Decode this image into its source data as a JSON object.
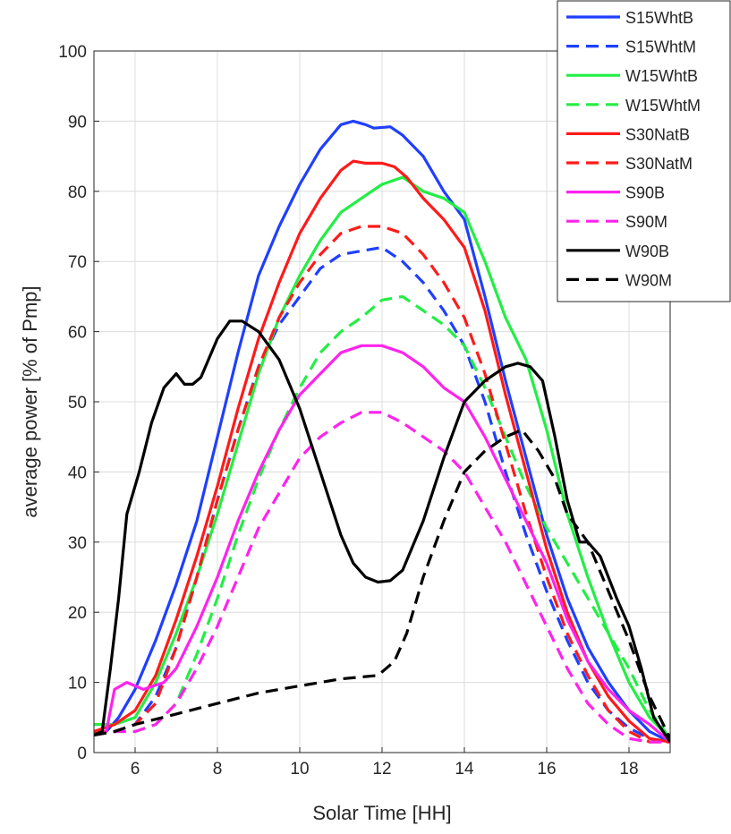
{
  "chart_data": {
    "type": "line",
    "title": "",
    "xlabel": "Solar Time [HH]",
    "ylabel": "average power [% of Pmp]",
    "xlim": [
      5,
      19
    ],
    "ylim": [
      0,
      100
    ],
    "xticks": [
      6,
      8,
      10,
      12,
      14,
      16,
      18
    ],
    "yticks": [
      0,
      10,
      20,
      30,
      40,
      50,
      60,
      70,
      80,
      90,
      100
    ],
    "grid": true,
    "legend_position": "top-right",
    "series": [
      {
        "name": "S15WhtB",
        "color": "#1f3fff",
        "dash": false,
        "points": [
          [
            5,
            2.5
          ],
          [
            5.3,
            3
          ],
          [
            5.6,
            5
          ],
          [
            6,
            9
          ],
          [
            6.5,
            16
          ],
          [
            7,
            24
          ],
          [
            7.5,
            33
          ],
          [
            8,
            45
          ],
          [
            8.5,
            57
          ],
          [
            9,
            68
          ],
          [
            9.5,
            75
          ],
          [
            10,
            81
          ],
          [
            10.5,
            86
          ],
          [
            11,
            89.5
          ],
          [
            11.3,
            90
          ],
          [
            11.6,
            89.5
          ],
          [
            11.8,
            89
          ],
          [
            12.2,
            89.2
          ],
          [
            12.5,
            88
          ],
          [
            13,
            85
          ],
          [
            13.5,
            80
          ],
          [
            14,
            76
          ],
          [
            14.5,
            65
          ],
          [
            15,
            53
          ],
          [
            15.5,
            42
          ],
          [
            16,
            31
          ],
          [
            16.5,
            22
          ],
          [
            17,
            15
          ],
          [
            17.5,
            10
          ],
          [
            18,
            6
          ],
          [
            18.5,
            3
          ],
          [
            19,
            1.5
          ]
        ]
      },
      {
        "name": "S15WhtM",
        "color": "#1f3fff",
        "dash": true,
        "points": [
          [
            5,
            2.5
          ],
          [
            5.5,
            3
          ],
          [
            6,
            4
          ],
          [
            6.5,
            8
          ],
          [
            7,
            15
          ],
          [
            7.5,
            25
          ],
          [
            8,
            36
          ],
          [
            8.5,
            46
          ],
          [
            9,
            55
          ],
          [
            9.5,
            61
          ],
          [
            10,
            65
          ],
          [
            10.5,
            69
          ],
          [
            11,
            71
          ],
          [
            11.5,
            71.5
          ],
          [
            12,
            72
          ],
          [
            12.5,
            70
          ],
          [
            13,
            67
          ],
          [
            13.5,
            63
          ],
          [
            14,
            58
          ],
          [
            14.5,
            50
          ],
          [
            15,
            40
          ],
          [
            15.5,
            31
          ],
          [
            16,
            23
          ],
          [
            16.5,
            16
          ],
          [
            17,
            10
          ],
          [
            17.5,
            6
          ],
          [
            18,
            3.5
          ],
          [
            18.5,
            2
          ],
          [
            19,
            1.5
          ]
        ]
      },
      {
        "name": "W15WhtB",
        "color": "#22ee44",
        "dash": false,
        "points": [
          [
            5,
            4
          ],
          [
            5.5,
            4
          ],
          [
            6,
            5
          ],
          [
            6.5,
            10
          ],
          [
            7,
            17
          ],
          [
            7.5,
            25
          ],
          [
            8,
            34
          ],
          [
            8.5,
            44
          ],
          [
            9,
            54
          ],
          [
            9.5,
            62
          ],
          [
            10,
            68
          ],
          [
            10.5,
            73
          ],
          [
            11,
            77
          ],
          [
            11.5,
            79
          ],
          [
            12,
            81
          ],
          [
            12.5,
            82
          ],
          [
            13,
            80
          ],
          [
            13.5,
            79
          ],
          [
            14,
            77
          ],
          [
            14.5,
            70
          ],
          [
            15,
            62
          ],
          [
            15.5,
            56
          ],
          [
            16,
            46
          ],
          [
            16.5,
            34
          ],
          [
            17,
            25
          ],
          [
            17.5,
            17
          ],
          [
            18,
            10
          ],
          [
            18.5,
            5
          ],
          [
            19,
            2
          ]
        ]
      },
      {
        "name": "W15WhtM",
        "color": "#22ee44",
        "dash": true,
        "points": [
          [
            5,
            3
          ],
          [
            5.5,
            3
          ],
          [
            6,
            3
          ],
          [
            6.5,
            4
          ],
          [
            7,
            7
          ],
          [
            7.5,
            14
          ],
          [
            8,
            22
          ],
          [
            8.5,
            31
          ],
          [
            9,
            39
          ],
          [
            9.5,
            46
          ],
          [
            10,
            52
          ],
          [
            10.5,
            57
          ],
          [
            11,
            60
          ],
          [
            11.5,
            62
          ],
          [
            12,
            64.5
          ],
          [
            12.5,
            65
          ],
          [
            13,
            63
          ],
          [
            13.5,
            61
          ],
          [
            14,
            58
          ],
          [
            14.5,
            52
          ],
          [
            15,
            45
          ],
          [
            15.5,
            38
          ],
          [
            16,
            32
          ],
          [
            16.5,
            27
          ],
          [
            17,
            22
          ],
          [
            17.5,
            17
          ],
          [
            18,
            12
          ],
          [
            18.5,
            6
          ],
          [
            19,
            2
          ]
        ]
      },
      {
        "name": "S30NatB",
        "color": "#ff1a1a",
        "dash": false,
        "points": [
          [
            5,
            3
          ],
          [
            5.5,
            4
          ],
          [
            6,
            6
          ],
          [
            6.5,
            11
          ],
          [
            7,
            19
          ],
          [
            7.5,
            28
          ],
          [
            8,
            38
          ],
          [
            8.5,
            49
          ],
          [
            9,
            59
          ],
          [
            9.5,
            67
          ],
          [
            10,
            74
          ],
          [
            10.5,
            79
          ],
          [
            11,
            83
          ],
          [
            11.3,
            84.3
          ],
          [
            11.6,
            84
          ],
          [
            12,
            84
          ],
          [
            12.3,
            83.5
          ],
          [
            12.6,
            82
          ],
          [
            13,
            79
          ],
          [
            13.5,
            76
          ],
          [
            14,
            72
          ],
          [
            14.5,
            63
          ],
          [
            15,
            51
          ],
          [
            15.5,
            40
          ],
          [
            16,
            29
          ],
          [
            16.5,
            20
          ],
          [
            17,
            13
          ],
          [
            17.5,
            8
          ],
          [
            18,
            4.5
          ],
          [
            18.5,
            2
          ],
          [
            19,
            1.5
          ]
        ]
      },
      {
        "name": "S30NatM",
        "color": "#ff1a1a",
        "dash": true,
        "points": [
          [
            5,
            3
          ],
          [
            5.5,
            3
          ],
          [
            6,
            4
          ],
          [
            6.5,
            7
          ],
          [
            7,
            15
          ],
          [
            7.5,
            25
          ],
          [
            8,
            36
          ],
          [
            8.5,
            46
          ],
          [
            9,
            55
          ],
          [
            9.5,
            62
          ],
          [
            10,
            67
          ],
          [
            10.5,
            71
          ],
          [
            11,
            74
          ],
          [
            11.5,
            75
          ],
          [
            12,
            75
          ],
          [
            12.5,
            74
          ],
          [
            13,
            71
          ],
          [
            13.5,
            67
          ],
          [
            14,
            62
          ],
          [
            14.5,
            54
          ],
          [
            15,
            44
          ],
          [
            15.5,
            34
          ],
          [
            16,
            25
          ],
          [
            16.5,
            17
          ],
          [
            17,
            11
          ],
          [
            17.5,
            6
          ],
          [
            18,
            3
          ],
          [
            18.5,
            1.5
          ],
          [
            19,
            1.5
          ]
        ]
      },
      {
        "name": "S90B",
        "color": "#ff22ee",
        "dash": false,
        "points": [
          [
            5,
            2.5
          ],
          [
            5.3,
            3
          ],
          [
            5.5,
            9
          ],
          [
            5.8,
            10
          ],
          [
            6.2,
            9
          ],
          [
            6.7,
            10
          ],
          [
            7,
            12
          ],
          [
            7.5,
            18
          ],
          [
            8,
            25
          ],
          [
            8.5,
            33
          ],
          [
            9,
            40
          ],
          [
            9.5,
            46
          ],
          [
            10,
            51
          ],
          [
            10.5,
            54
          ],
          [
            11,
            57
          ],
          [
            11.5,
            58
          ],
          [
            12,
            58
          ],
          [
            12.5,
            57
          ],
          [
            13,
            55
          ],
          [
            13.5,
            52
          ],
          [
            14,
            50
          ],
          [
            14.5,
            45
          ],
          [
            15,
            39
          ],
          [
            15.5,
            33
          ],
          [
            16,
            27
          ],
          [
            16.5,
            19
          ],
          [
            17,
            13
          ],
          [
            17.5,
            9
          ],
          [
            18,
            6
          ],
          [
            18.5,
            4
          ],
          [
            19,
            1.5
          ]
        ]
      },
      {
        "name": "S90M",
        "color": "#ff22ee",
        "dash": true,
        "points": [
          [
            5,
            2.5
          ],
          [
            5.5,
            3
          ],
          [
            6,
            3
          ],
          [
            6.5,
            4
          ],
          [
            7,
            7
          ],
          [
            7.5,
            12
          ],
          [
            8,
            18
          ],
          [
            8.5,
            25
          ],
          [
            9,
            32
          ],
          [
            9.5,
            37
          ],
          [
            10,
            42
          ],
          [
            10.5,
            45
          ],
          [
            11,
            47
          ],
          [
            11.5,
            48.5
          ],
          [
            12,
            48.5
          ],
          [
            12.5,
            47
          ],
          [
            13,
            45
          ],
          [
            13.5,
            43
          ],
          [
            14,
            40
          ],
          [
            14.5,
            35
          ],
          [
            15,
            30
          ],
          [
            15.5,
            24
          ],
          [
            16,
            18
          ],
          [
            16.5,
            12
          ],
          [
            17,
            7
          ],
          [
            17.5,
            4
          ],
          [
            18,
            2
          ],
          [
            18.5,
            1.5
          ],
          [
            19,
            1.5
          ]
        ]
      },
      {
        "name": "W90B",
        "color": "#000000",
        "dash": false,
        "points": [
          [
            5,
            2.5
          ],
          [
            5.2,
            3
          ],
          [
            5.4,
            12
          ],
          [
            5.6,
            22
          ],
          [
            5.8,
            34
          ],
          [
            6.1,
            40
          ],
          [
            6.4,
            47
          ],
          [
            6.7,
            52
          ],
          [
            7,
            54
          ],
          [
            7.2,
            52.5
          ],
          [
            7.4,
            52.5
          ],
          [
            7.6,
            53.5
          ],
          [
            8,
            59
          ],
          [
            8.3,
            61.5
          ],
          [
            8.6,
            61.5
          ],
          [
            9,
            60
          ],
          [
            9.5,
            56
          ],
          [
            10,
            49
          ],
          [
            10.5,
            40
          ],
          [
            11,
            31
          ],
          [
            11.3,
            27
          ],
          [
            11.6,
            25
          ],
          [
            11.9,
            24.3
          ],
          [
            12.2,
            24.5
          ],
          [
            12.5,
            26
          ],
          [
            13,
            33
          ],
          [
            13.5,
            42
          ],
          [
            14,
            50
          ],
          [
            14.5,
            53
          ],
          [
            15,
            55
          ],
          [
            15.3,
            55.5
          ],
          [
            15.6,
            55
          ],
          [
            15.9,
            53
          ],
          [
            16.2,
            45
          ],
          [
            16.5,
            36
          ],
          [
            16.8,
            30
          ],
          [
            17,
            30
          ],
          [
            17.3,
            28
          ],
          [
            17.5,
            25
          ],
          [
            17.7,
            22
          ],
          [
            18,
            18
          ],
          [
            18.3,
            12
          ],
          [
            18.6,
            5
          ],
          [
            19,
            1.5
          ]
        ]
      },
      {
        "name": "W90M",
        "color": "#000000",
        "dash": true,
        "points": [
          [
            5,
            2.5
          ],
          [
            5.5,
            3
          ],
          [
            6,
            4
          ],
          [
            7,
            5.5
          ],
          [
            8,
            7
          ],
          [
            9,
            8.5
          ],
          [
            10,
            9.5
          ],
          [
            11,
            10.5
          ],
          [
            11.9,
            11
          ],
          [
            12.3,
            13
          ],
          [
            12.6,
            17
          ],
          [
            13,
            25
          ],
          [
            13.5,
            33
          ],
          [
            14,
            40
          ],
          [
            14.5,
            43
          ],
          [
            15,
            45
          ],
          [
            15.4,
            46
          ],
          [
            15.8,
            43
          ],
          [
            16.2,
            39
          ],
          [
            16.5,
            34
          ],
          [
            17,
            30
          ],
          [
            17.5,
            23
          ],
          [
            18,
            16
          ],
          [
            18.5,
            8
          ],
          [
            19,
            2
          ]
        ]
      }
    ]
  }
}
